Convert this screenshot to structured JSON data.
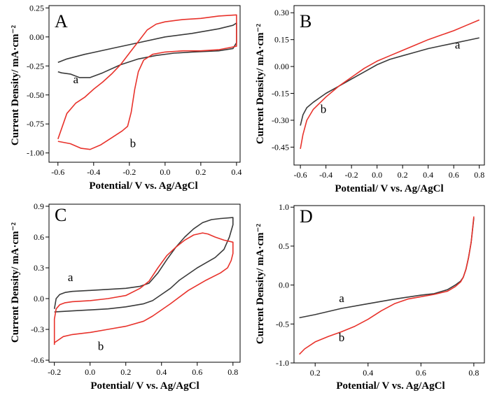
{
  "colors": {
    "a": "#3a3a3a",
    "b": "#e8322b"
  },
  "chart_data": [
    {
      "panel": "A",
      "type": "line",
      "xlabel": "Potential/ V vs. Ag/AgCl",
      "ylabel": "Current Density/ mA·cm⁻²",
      "xlim": [
        -0.65,
        0.42
      ],
      "ylim": [
        -1.08,
        0.27
      ],
      "xticks": [
        -0.6,
        -0.4,
        -0.2,
        0.0,
        0.2,
        0.4
      ],
      "xtick_labels": [
        "-0.6",
        "-0.4",
        "-0.2",
        "0.0",
        "0.2",
        "0.4"
      ],
      "yticks": [
        0.25,
        0.0,
        -0.25,
        -0.5,
        -0.75,
        -1.0
      ],
      "ytick_labels": [
        "0.25",
        "0.00",
        "-0.25",
        "-0.50",
        "-0.75",
        "-1.00"
      ],
      "series": [
        {
          "name": "a",
          "color_key": "a",
          "points": [
            [
              -0.6,
              -0.22
            ],
            [
              -0.55,
              -0.19
            ],
            [
              -0.45,
              -0.15
            ],
            [
              -0.3,
              -0.1
            ],
            [
              -0.15,
              -0.05
            ],
            [
              0.0,
              0.0
            ],
            [
              0.15,
              0.03
            ],
            [
              0.3,
              0.07
            ],
            [
              0.38,
              0.1
            ],
            [
              0.4,
              0.12
            ],
            [
              0.4,
              -0.05
            ],
            [
              0.38,
              -0.1
            ],
            [
              0.3,
              -0.12
            ],
            [
              0.15,
              -0.13
            ],
            [
              0.05,
              -0.14
            ],
            [
              -0.05,
              -0.16
            ],
            [
              -0.15,
              -0.19
            ],
            [
              -0.25,
              -0.24
            ],
            [
              -0.35,
              -0.31
            ],
            [
              -0.42,
              -0.35
            ],
            [
              -0.48,
              -0.35
            ],
            [
              -0.53,
              -0.32
            ],
            [
              -0.58,
              -0.31
            ],
            [
              -0.6,
              -0.3
            ]
          ]
        },
        {
          "name": "b",
          "color_key": "b",
          "points": [
            [
              -0.6,
              -0.88
            ],
            [
              -0.55,
              -0.66
            ],
            [
              -0.5,
              -0.57
            ],
            [
              -0.45,
              -0.52
            ],
            [
              -0.4,
              -0.45
            ],
            [
              -0.35,
              -0.39
            ],
            [
              -0.3,
              -0.32
            ],
            [
              -0.25,
              -0.24
            ],
            [
              -0.2,
              -0.14
            ],
            [
              -0.15,
              -0.04
            ],
            [
              -0.1,
              0.06
            ],
            [
              -0.05,
              0.11
            ],
            [
              0.0,
              0.13
            ],
            [
              0.1,
              0.15
            ],
            [
              0.2,
              0.16
            ],
            [
              0.3,
              0.18
            ],
            [
              0.4,
              0.19
            ],
            [
              0.4,
              -0.08
            ],
            [
              0.3,
              -0.11
            ],
            [
              0.2,
              -0.12
            ],
            [
              0.1,
              -0.12
            ],
            [
              0.0,
              -0.13
            ],
            [
              -0.07,
              -0.15
            ],
            [
              -0.12,
              -0.2
            ],
            [
              -0.15,
              -0.3
            ],
            [
              -0.17,
              -0.45
            ],
            [
              -0.19,
              -0.65
            ],
            [
              -0.21,
              -0.77
            ],
            [
              -0.24,
              -0.81
            ],
            [
              -0.3,
              -0.87
            ],
            [
              -0.36,
              -0.93
            ],
            [
              -0.42,
              -0.97
            ],
            [
              -0.47,
              -0.96
            ],
            [
              -0.53,
              -0.92
            ],
            [
              -0.6,
              -0.9
            ]
          ]
        }
      ],
      "labels": [
        {
          "text": "a",
          "x": -0.5,
          "y": -0.4
        },
        {
          "text": "b",
          "x": -0.18,
          "y": -0.95
        }
      ]
    },
    {
      "panel": "B",
      "type": "line",
      "xlabel": "Potential/ V vs. Ag/AgCl",
      "ylabel": "Current Density/ mA·cm⁻²",
      "xlim": [
        -0.65,
        0.84
      ],
      "ylim": [
        -0.55,
        0.34
      ],
      "xticks": [
        -0.6,
        -0.4,
        -0.2,
        0.0,
        0.2,
        0.4,
        0.6,
        0.8
      ],
      "xtick_labels": [
        "-0.6",
        "-0.4",
        "-0.2",
        "0.0",
        "0.2",
        "0.4",
        "0.6",
        "0.8"
      ],
      "yticks": [
        0.3,
        0.15,
        0.0,
        -0.15,
        -0.3,
        -0.45
      ],
      "ytick_labels": [
        "0.30",
        "0.15",
        "0.00",
        "-0.15",
        "-0.30",
        "-0.45"
      ],
      "series": [
        {
          "name": "a",
          "color_key": "a",
          "points": [
            [
              -0.6,
              -0.33
            ],
            [
              -0.58,
              -0.27
            ],
            [
              -0.55,
              -0.23
            ],
            [
              -0.5,
              -0.2
            ],
            [
              -0.4,
              -0.15
            ],
            [
              -0.3,
              -0.11
            ],
            [
              -0.2,
              -0.07
            ],
            [
              -0.1,
              -0.03
            ],
            [
              0.0,
              0.01
            ],
            [
              0.1,
              0.04
            ],
            [
              0.2,
              0.06
            ],
            [
              0.3,
              0.08
            ],
            [
              0.4,
              0.1
            ],
            [
              0.5,
              0.115
            ],
            [
              0.6,
              0.13
            ],
            [
              0.7,
              0.145
            ],
            [
              0.8,
              0.16
            ]
          ]
        },
        {
          "name": "b",
          "color_key": "b",
          "points": [
            [
              -0.6,
              -0.46
            ],
            [
              -0.58,
              -0.38
            ],
            [
              -0.55,
              -0.3
            ],
            [
              -0.5,
              -0.24
            ],
            [
              -0.4,
              -0.17
            ],
            [
              -0.3,
              -0.11
            ],
            [
              -0.2,
              -0.06
            ],
            [
              -0.1,
              -0.01
            ],
            [
              0.0,
              0.03
            ],
            [
              0.1,
              0.06
            ],
            [
              0.2,
              0.09
            ],
            [
              0.3,
              0.12
            ],
            [
              0.4,
              0.15
            ],
            [
              0.5,
              0.175
            ],
            [
              0.6,
              0.2
            ],
            [
              0.7,
              0.23
            ],
            [
              0.8,
              0.26
            ]
          ]
        }
      ],
      "labels": [
        {
          "text": "a",
          "x": 0.63,
          "y": 0.1
        },
        {
          "text": "b",
          "x": -0.42,
          "y": -0.26
        }
      ]
    },
    {
      "panel": "C",
      "type": "line",
      "xlabel": "Potential/ V vs. Ag/AgCl",
      "ylabel": "Current Density/ mA·cm⁻²",
      "xlim": [
        -0.23,
        0.84
      ],
      "ylim": [
        -0.62,
        0.92
      ],
      "xticks": [
        -0.2,
        0.0,
        0.2,
        0.4,
        0.6,
        0.8
      ],
      "xtick_labels": [
        "-0.2",
        "0.0",
        "0.2",
        "0.4",
        "0.6",
        "0.8"
      ],
      "yticks": [
        0.9,
        0.6,
        0.3,
        0.0,
        -0.3,
        -0.6
      ],
      "ytick_labels": [
        "0.9",
        "0.6",
        "0.3",
        "0.0",
        "-0.3",
        "-0.6"
      ],
      "series": [
        {
          "name": "a",
          "color_key": "a",
          "points": [
            [
              -0.2,
              -0.1
            ],
            [
              -0.19,
              0.0
            ],
            [
              -0.17,
              0.04
            ],
            [
              -0.14,
              0.06
            ],
            [
              -0.1,
              0.07
            ],
            [
              0.0,
              0.08
            ],
            [
              0.1,
              0.09
            ],
            [
              0.2,
              0.1
            ],
            [
              0.28,
              0.12
            ],
            [
              0.33,
              0.15
            ],
            [
              0.38,
              0.25
            ],
            [
              0.43,
              0.38
            ],
            [
              0.48,
              0.5
            ],
            [
              0.53,
              0.6
            ],
            [
              0.58,
              0.68
            ],
            [
              0.63,
              0.74
            ],
            [
              0.68,
              0.77
            ],
            [
              0.73,
              0.78
            ],
            [
              0.8,
              0.79
            ],
            [
              0.8,
              0.72
            ],
            [
              0.78,
              0.6
            ],
            [
              0.75,
              0.48
            ],
            [
              0.7,
              0.4
            ],
            [
              0.6,
              0.3
            ],
            [
              0.5,
              0.18
            ],
            [
              0.45,
              0.1
            ],
            [
              0.4,
              0.04
            ],
            [
              0.35,
              -0.02
            ],
            [
              0.3,
              -0.05
            ],
            [
              0.2,
              -0.08
            ],
            [
              0.1,
              -0.1
            ],
            [
              0.0,
              -0.11
            ],
            [
              -0.1,
              -0.12
            ],
            [
              -0.2,
              -0.13
            ]
          ]
        },
        {
          "name": "b",
          "color_key": "b",
          "points": [
            [
              -0.2,
              -0.45
            ],
            [
              -0.2,
              -0.2
            ],
            [
              -0.19,
              -0.1
            ],
            [
              -0.17,
              -0.06
            ],
            [
              -0.14,
              -0.04
            ],
            [
              -0.1,
              -0.03
            ],
            [
              0.0,
              -0.02
            ],
            [
              0.1,
              0.0
            ],
            [
              0.2,
              0.03
            ],
            [
              0.28,
              0.1
            ],
            [
              0.33,
              0.17
            ],
            [
              0.38,
              0.3
            ],
            [
              0.43,
              0.42
            ],
            [
              0.48,
              0.5
            ],
            [
              0.53,
              0.57
            ],
            [
              0.58,
              0.62
            ],
            [
              0.63,
              0.64
            ],
            [
              0.66,
              0.63
            ],
            [
              0.7,
              0.6
            ],
            [
              0.75,
              0.57
            ],
            [
              0.8,
              0.55
            ],
            [
              0.8,
              0.44
            ],
            [
              0.79,
              0.37
            ],
            [
              0.77,
              0.3
            ],
            [
              0.73,
              0.25
            ],
            [
              0.65,
              0.18
            ],
            [
              0.55,
              0.08
            ],
            [
              0.45,
              -0.05
            ],
            [
              0.35,
              -0.17
            ],
            [
              0.3,
              -0.22
            ],
            [
              0.2,
              -0.27
            ],
            [
              0.1,
              -0.3
            ],
            [
              0.0,
              -0.33
            ],
            [
              -0.1,
              -0.35
            ],
            [
              -0.15,
              -0.37
            ],
            [
              -0.2,
              -0.43
            ]
          ]
        }
      ],
      "labels": [
        {
          "text": "a",
          "x": -0.11,
          "y": 0.17
        },
        {
          "text": "b",
          "x": 0.06,
          "y": -0.5
        }
      ]
    },
    {
      "panel": "D",
      "type": "line",
      "xlabel": "Potential/ V vs. Ag/AgCl",
      "ylabel": "Current Density/ mA·cm⁻²",
      "xlim": [
        0.12,
        0.84
      ],
      "ylim": [
        -1.0,
        1.02
      ],
      "xticks": [
        0.2,
        0.4,
        0.6,
        0.8
      ],
      "xtick_labels": [
        "0.2",
        "0.4",
        "0.6",
        "0.8"
      ],
      "yticks": [
        1.0,
        0.5,
        0.0,
        -0.5,
        -1.0
      ],
      "ytick_labels": [
        "1.0",
        "0.5",
        "0.0",
        "-0.5",
        "-1.0"
      ],
      "series": [
        {
          "name": "a",
          "color_key": "a",
          "points": [
            [
              0.14,
              -0.42
            ],
            [
              0.2,
              -0.38
            ],
            [
              0.3,
              -0.3
            ],
            [
              0.4,
              -0.24
            ],
            [
              0.5,
              -0.18
            ],
            [
              0.6,
              -0.13
            ],
            [
              0.65,
              -0.11
            ],
            [
              0.7,
              -0.06
            ],
            [
              0.73,
              0.0
            ],
            [
              0.75,
              0.05
            ],
            [
              0.76,
              0.1
            ],
            [
              0.77,
              0.2
            ],
            [
              0.78,
              0.35
            ],
            [
              0.79,
              0.55
            ],
            [
              0.8,
              0.86
            ]
          ]
        },
        {
          "name": "b",
          "color_key": "b",
          "points": [
            [
              0.14,
              -0.89
            ],
            [
              0.16,
              -0.82
            ],
            [
              0.2,
              -0.73
            ],
            [
              0.25,
              -0.66
            ],
            [
              0.3,
              -0.6
            ],
            [
              0.35,
              -0.53
            ],
            [
              0.4,
              -0.44
            ],
            [
              0.45,
              -0.33
            ],
            [
              0.5,
              -0.24
            ],
            [
              0.55,
              -0.18
            ],
            [
              0.6,
              -0.15
            ],
            [
              0.65,
              -0.12
            ],
            [
              0.7,
              -0.08
            ],
            [
              0.73,
              -0.02
            ],
            [
              0.75,
              0.04
            ],
            [
              0.76,
              0.1
            ],
            [
              0.77,
              0.2
            ],
            [
              0.78,
              0.35
            ],
            [
              0.79,
              0.55
            ],
            [
              0.8,
              0.88
            ]
          ]
        }
      ],
      "labels": [
        {
          "text": "a",
          "x": 0.3,
          "y": -0.22
        },
        {
          "text": "b",
          "x": 0.3,
          "y": -0.72
        }
      ]
    }
  ]
}
